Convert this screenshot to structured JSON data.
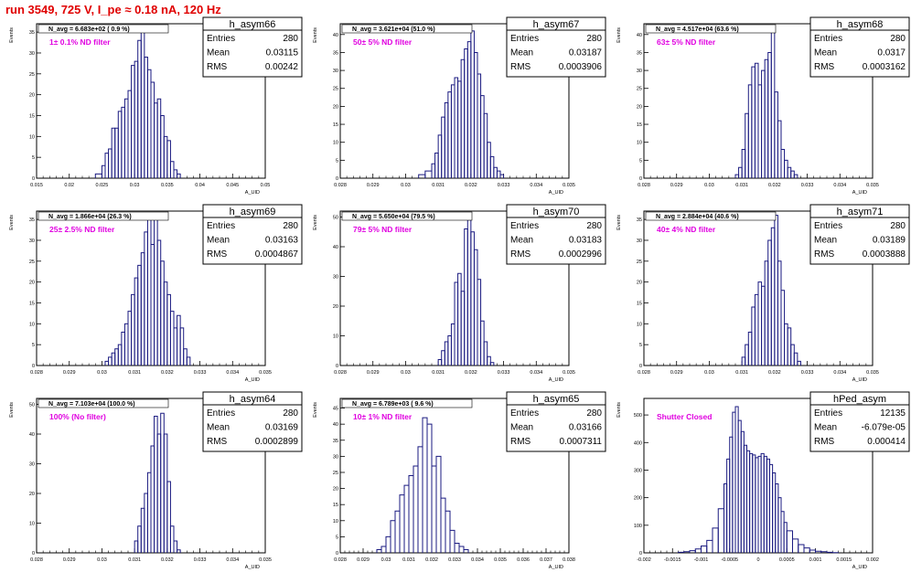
{
  "page": {
    "title": "run 3549,   725 V, I_pe ≈ 0.18 nA, 120 Hz",
    "colors": {
      "hist_line": "#1a1a80",
      "annotation": "#e000e0",
      "title": "#e00000",
      "frame": "#000000"
    }
  },
  "chart_data": [
    {
      "type": "histogram",
      "name": "h_asym66",
      "annotation": "N_avg = 6.683e+02 ( 0.9 %)",
      "filter_label": "1± 0.1% ND filter",
      "stats": {
        "Entries": "280",
        "Mean": "0.03115",
        "RMS": "0.00242"
      },
      "ylabel": "Events",
      "xlabel": "A_UID",
      "xlim": [
        0.015,
        0.05
      ],
      "ylim": [
        0,
        37
      ],
      "xticks": [
        "0.015",
        "0.02",
        "0.025",
        "0.03",
        "0.035",
        "0.04",
        "0.045",
        "0.05"
      ],
      "yticks": [
        0,
        5,
        10,
        15,
        20,
        25,
        30,
        35
      ],
      "bins": [
        [
          0.024,
          1
        ],
        [
          0.025,
          3
        ],
        [
          0.0255,
          6
        ],
        [
          0.026,
          7
        ],
        [
          0.0265,
          12
        ],
        [
          0.027,
          12
        ],
        [
          0.0275,
          16
        ],
        [
          0.028,
          17
        ],
        [
          0.0285,
          19
        ],
        [
          0.029,
          21
        ],
        [
          0.0295,
          27
        ],
        [
          0.03,
          28
        ],
        [
          0.0305,
          33
        ],
        [
          0.031,
          36
        ],
        [
          0.0315,
          29
        ],
        [
          0.032,
          26
        ],
        [
          0.0325,
          23
        ],
        [
          0.033,
          18
        ],
        [
          0.0335,
          19
        ],
        [
          0.034,
          15
        ],
        [
          0.0345,
          10
        ],
        [
          0.035,
          9
        ],
        [
          0.0355,
          4
        ],
        [
          0.036,
          2
        ],
        [
          0.0365,
          1
        ]
      ]
    },
    {
      "type": "histogram",
      "name": "h_asym67",
      "annotation": "N_avg = 3.621e+04 (51.0 %)",
      "filter_label": "50± 5% ND filter",
      "stats": {
        "Entries": "280",
        "Mean": "0.03187",
        "RMS": "0.0003906"
      },
      "ylabel": "Events",
      "xlabel": "A_UID",
      "xlim": [
        0.028,
        0.035
      ],
      "ylim": [
        0,
        43
      ],
      "xticks": [
        "0.028",
        "0.029",
        "0.03",
        "0.031",
        "0.032",
        "0.033",
        "0.034",
        "0.035"
      ],
      "yticks": [
        0,
        5,
        10,
        15,
        20,
        25,
        30,
        35,
        40
      ],
      "bins": [
        [
          0.0304,
          1
        ],
        [
          0.0306,
          2
        ],
        [
          0.0308,
          4
        ],
        [
          0.0309,
          7
        ],
        [
          0.031,
          12
        ],
        [
          0.0311,
          17
        ],
        [
          0.0312,
          21
        ],
        [
          0.0313,
          24
        ],
        [
          0.0314,
          26
        ],
        [
          0.0315,
          28
        ],
        [
          0.0316,
          27
        ],
        [
          0.0317,
          33
        ],
        [
          0.0318,
          36
        ],
        [
          0.0319,
          38
        ],
        [
          0.032,
          41
        ],
        [
          0.0321,
          35
        ],
        [
          0.0322,
          29
        ],
        [
          0.0323,
          23
        ],
        [
          0.0324,
          18
        ],
        [
          0.0325,
          10
        ],
        [
          0.0326,
          6
        ],
        [
          0.0327,
          3
        ],
        [
          0.0328,
          2
        ],
        [
          0.0329,
          1
        ]
      ]
    },
    {
      "type": "histogram",
      "name": "h_asym68",
      "annotation": "N_avg = 4.517e+04 (63.6 %)",
      "filter_label": "63± 5% ND filter",
      "stats": {
        "Entries": "280",
        "Mean": "0.0317",
        "RMS": "0.0003162"
      },
      "ylabel": "Events",
      "xlabel": "A_UID",
      "xlim": [
        0.028,
        0.035
      ],
      "ylim": [
        0,
        43
      ],
      "xticks": [
        "0.028",
        "0.029",
        "0.03",
        "0.031",
        "0.032",
        "0.033",
        "0.034",
        "0.035"
      ],
      "yticks": [
        0,
        5,
        10,
        15,
        20,
        25,
        30,
        35,
        40
      ],
      "bins": [
        [
          0.0308,
          1
        ],
        [
          0.0309,
          3
        ],
        [
          0.031,
          8
        ],
        [
          0.0311,
          18
        ],
        [
          0.0312,
          26
        ],
        [
          0.0313,
          31
        ],
        [
          0.0314,
          32
        ],
        [
          0.0315,
          26
        ],
        [
          0.0316,
          30
        ],
        [
          0.0317,
          33
        ],
        [
          0.0318,
          35
        ],
        [
          0.0319,
          41
        ],
        [
          0.032,
          24
        ],
        [
          0.0321,
          16
        ],
        [
          0.0322,
          8
        ],
        [
          0.0323,
          5
        ],
        [
          0.0324,
          3
        ],
        [
          0.0325,
          2
        ],
        [
          0.0326,
          1
        ]
      ]
    },
    {
      "type": "histogram",
      "name": "h_asym69",
      "annotation": "N_avg = 1.866e+04 (26.3 %)",
      "filter_label": "25± 2.5% ND filter",
      "stats": {
        "Entries": "280",
        "Mean": "0.03163",
        "RMS": "0.0004867"
      },
      "ylabel": "Events",
      "xlabel": "A_UID",
      "xlim": [
        0.028,
        0.035
      ],
      "ylim": [
        0,
        37
      ],
      "xticks": [
        "0.028",
        "0.029",
        "0.03",
        "0.031",
        "0.032",
        "0.033",
        "0.034",
        "0.035"
      ],
      "yticks": [
        0,
        5,
        10,
        15,
        20,
        25,
        30,
        35
      ],
      "bins": [
        [
          0.0301,
          1
        ],
        [
          0.0302,
          2
        ],
        [
          0.0303,
          3
        ],
        [
          0.0304,
          4
        ],
        [
          0.0305,
          5
        ],
        [
          0.0306,
          8
        ],
        [
          0.0307,
          10
        ],
        [
          0.0308,
          13
        ],
        [
          0.0309,
          17
        ],
        [
          0.031,
          21
        ],
        [
          0.0311,
          24
        ],
        [
          0.0312,
          27
        ],
        [
          0.0313,
          32
        ],
        [
          0.0314,
          36
        ],
        [
          0.0315,
          29
        ],
        [
          0.0316,
          36
        ],
        [
          0.0317,
          30
        ],
        [
          0.0318,
          25
        ],
        [
          0.0319,
          20
        ],
        [
          0.032,
          17
        ],
        [
          0.0321,
          13
        ],
        [
          0.0322,
          9
        ],
        [
          0.0323,
          12
        ],
        [
          0.0324,
          9
        ],
        [
          0.0325,
          4
        ],
        [
          0.0326,
          2
        ]
      ]
    },
    {
      "type": "histogram",
      "name": "h_asym70",
      "annotation": "N_avg = 5.650e+04 (79.5 %)",
      "filter_label": "79± 5% ND filter",
      "stats": {
        "Entries": "280",
        "Mean": "0.03183",
        "RMS": "0.0002996"
      },
      "ylabel": "Events",
      "xlabel": "A_UID",
      "xlim": [
        0.028,
        0.035
      ],
      "ylim": [
        0,
        52
      ],
      "xticks": [
        "0.028",
        "0.029",
        "0.03",
        "0.031",
        "0.032",
        "0.033",
        "0.034",
        "0.035"
      ],
      "yticks": [
        0,
        10,
        20,
        30,
        40,
        50
      ],
      "bins": [
        [
          0.031,
          2
        ],
        [
          0.0311,
          5
        ],
        [
          0.0312,
          8
        ],
        [
          0.0313,
          10
        ],
        [
          0.0314,
          14
        ],
        [
          0.0315,
          28
        ],
        [
          0.0316,
          31
        ],
        [
          0.0317,
          25
        ],
        [
          0.0318,
          46
        ],
        [
          0.0319,
          49
        ],
        [
          0.032,
          45
        ],
        [
          0.0321,
          39
        ],
        [
          0.0322,
          29
        ],
        [
          0.0323,
          15
        ],
        [
          0.0324,
          8
        ],
        [
          0.0325,
          3
        ],
        [
          0.0326,
          1
        ]
      ]
    },
    {
      "type": "histogram",
      "name": "h_asym71",
      "annotation": "N_avg = 2.884e+04 (40.6 %)",
      "filter_label": "40± 4% ND filter",
      "stats": {
        "Entries": "280",
        "Mean": "0.03189",
        "RMS": "0.0003888"
      },
      "ylabel": "Events",
      "xlabel": "A_UID",
      "xlim": [
        0.028,
        0.035
      ],
      "ylim": [
        0,
        37
      ],
      "xticks": [
        "0.028",
        "0.029",
        "0.03",
        "0.031",
        "0.032",
        "0.033",
        "0.034",
        "0.035"
      ],
      "yticks": [
        0,
        5,
        10,
        15,
        20,
        25,
        30,
        35
      ],
      "bins": [
        [
          0.031,
          2
        ],
        [
          0.0311,
          5
        ],
        [
          0.0312,
          8
        ],
        [
          0.0313,
          14
        ],
        [
          0.0314,
          17
        ],
        [
          0.0315,
          20
        ],
        [
          0.0316,
          19
        ],
        [
          0.0317,
          25
        ],
        [
          0.0318,
          30
        ],
        [
          0.0319,
          33
        ],
        [
          0.032,
          36
        ],
        [
          0.0321,
          25
        ],
        [
          0.0322,
          18
        ],
        [
          0.0323,
          10
        ],
        [
          0.0324,
          9
        ],
        [
          0.0325,
          5
        ],
        [
          0.0326,
          3
        ],
        [
          0.0327,
          1
        ]
      ]
    },
    {
      "type": "histogram",
      "name": "h_asym64",
      "annotation": "N_avg = 7.103e+04 (100.0 %)",
      "filter_label": "100% (No filter)",
      "stats": {
        "Entries": "280",
        "Mean": "0.03169",
        "RMS": "0.0002899"
      },
      "ylabel": "Events",
      "xlabel": "A_UID",
      "xlim": [
        0.028,
        0.035
      ],
      "ylim": [
        0,
        52
      ],
      "xticks": [
        "0.028",
        "0.029",
        "0.03",
        "0.031",
        "0.032",
        "0.033",
        "0.034",
        "0.035"
      ],
      "yticks": [
        0,
        10,
        20,
        30,
        40,
        50
      ],
      "bins": [
        [
          0.031,
          4
        ],
        [
          0.0311,
          9
        ],
        [
          0.0312,
          15
        ],
        [
          0.0313,
          20
        ],
        [
          0.0314,
          27
        ],
        [
          0.0315,
          36
        ],
        [
          0.0316,
          46
        ],
        [
          0.0317,
          40
        ],
        [
          0.0318,
          47
        ],
        [
          0.0319,
          40
        ],
        [
          0.032,
          24
        ],
        [
          0.0321,
          9
        ],
        [
          0.0322,
          4
        ],
        [
          0.0323,
          1
        ]
      ]
    },
    {
      "type": "histogram",
      "name": "h_asym65",
      "annotation": "N_avg = 6.789e+03 ( 9.6 %)",
      "filter_label": "10± 1% ND filter",
      "stats": {
        "Entries": "280",
        "Mean": "0.03166",
        "RMS": "0.0007311"
      },
      "ylabel": "Events",
      "xlabel": "A_UID",
      "xlim": [
        0.028,
        0.038
      ],
      "ylim": [
        0,
        48
      ],
      "xticks": [
        "0.028",
        "0.029",
        "0.03",
        "0.031",
        "0.032",
        "0.033",
        "0.034",
        "0.035",
        "0.036",
        "0.037",
        "0.038"
      ],
      "yticks": [
        0,
        5,
        10,
        15,
        20,
        25,
        30,
        35,
        40,
        45
      ],
      "bins": [
        [
          0.0296,
          1
        ],
        [
          0.0298,
          2
        ],
        [
          0.03,
          5
        ],
        [
          0.0302,
          10
        ],
        [
          0.0304,
          13
        ],
        [
          0.0306,
          18
        ],
        [
          0.0308,
          21
        ],
        [
          0.031,
          24
        ],
        [
          0.0312,
          27
        ],
        [
          0.0314,
          33
        ],
        [
          0.0316,
          42
        ],
        [
          0.0318,
          40
        ],
        [
          0.032,
          27
        ],
        [
          0.0322,
          30
        ],
        [
          0.0324,
          17
        ],
        [
          0.0326,
          13
        ],
        [
          0.0328,
          7
        ],
        [
          0.033,
          3
        ],
        [
          0.0332,
          2
        ],
        [
          0.0334,
          1
        ]
      ]
    },
    {
      "type": "histogram",
      "name": "hPed_asym",
      "annotation": "",
      "filter_label": "Shutter Closed",
      "stats": {
        "Entries": "12135",
        "Mean": "-6.079e-05",
        "RMS": "0.000414"
      },
      "ylabel": "Events",
      "xlabel": "A_UID",
      "xlim": [
        -0.002,
        0.002
      ],
      "ylim": [
        0,
        560
      ],
      "xticks": [
        "-0.002",
        "-0.0015",
        "-0.001",
        "-0.0005",
        "0",
        "0.0005",
        "0.001",
        "0.0015",
        "0.002"
      ],
      "yticks": [
        0,
        100,
        200,
        300,
        400,
        500
      ],
      "bins": [
        [
          -0.0014,
          2
        ],
        [
          -0.0013,
          4
        ],
        [
          -0.0012,
          8
        ],
        [
          -0.0011,
          14
        ],
        [
          -0.001,
          25
        ],
        [
          -0.0009,
          45
        ],
        [
          -0.0008,
          90
        ],
        [
          -0.0007,
          160
        ],
        [
          -0.0006,
          250
        ],
        [
          -0.00055,
          340
        ],
        [
          -0.0005,
          420
        ],
        [
          -0.00045,
          510
        ],
        [
          -0.0004,
          530
        ],
        [
          -0.00035,
          480
        ],
        [
          -0.0003,
          440
        ],
        [
          -0.00025,
          390
        ],
        [
          -0.0002,
          370
        ],
        [
          -0.00015,
          360
        ],
        [
          -0.0001,
          355
        ],
        [
          -5e-05,
          345
        ],
        [
          0.0,
          350
        ],
        [
          5e-05,
          360
        ],
        [
          0.0001,
          350
        ],
        [
          0.00015,
          340
        ],
        [
          0.0002,
          320
        ],
        [
          0.00025,
          290
        ],
        [
          0.0003,
          250
        ],
        [
          0.00035,
          200
        ],
        [
          0.0004,
          150
        ],
        [
          0.00045,
          110
        ],
        [
          0.0005,
          80
        ],
        [
          0.0006,
          50
        ],
        [
          0.0007,
          30
        ],
        [
          0.0008,
          18
        ],
        [
          0.0009,
          10
        ],
        [
          0.001,
          6
        ],
        [
          0.0011,
          4
        ],
        [
          0.0012,
          2
        ],
        [
          0.0013,
          1
        ]
      ]
    }
  ]
}
